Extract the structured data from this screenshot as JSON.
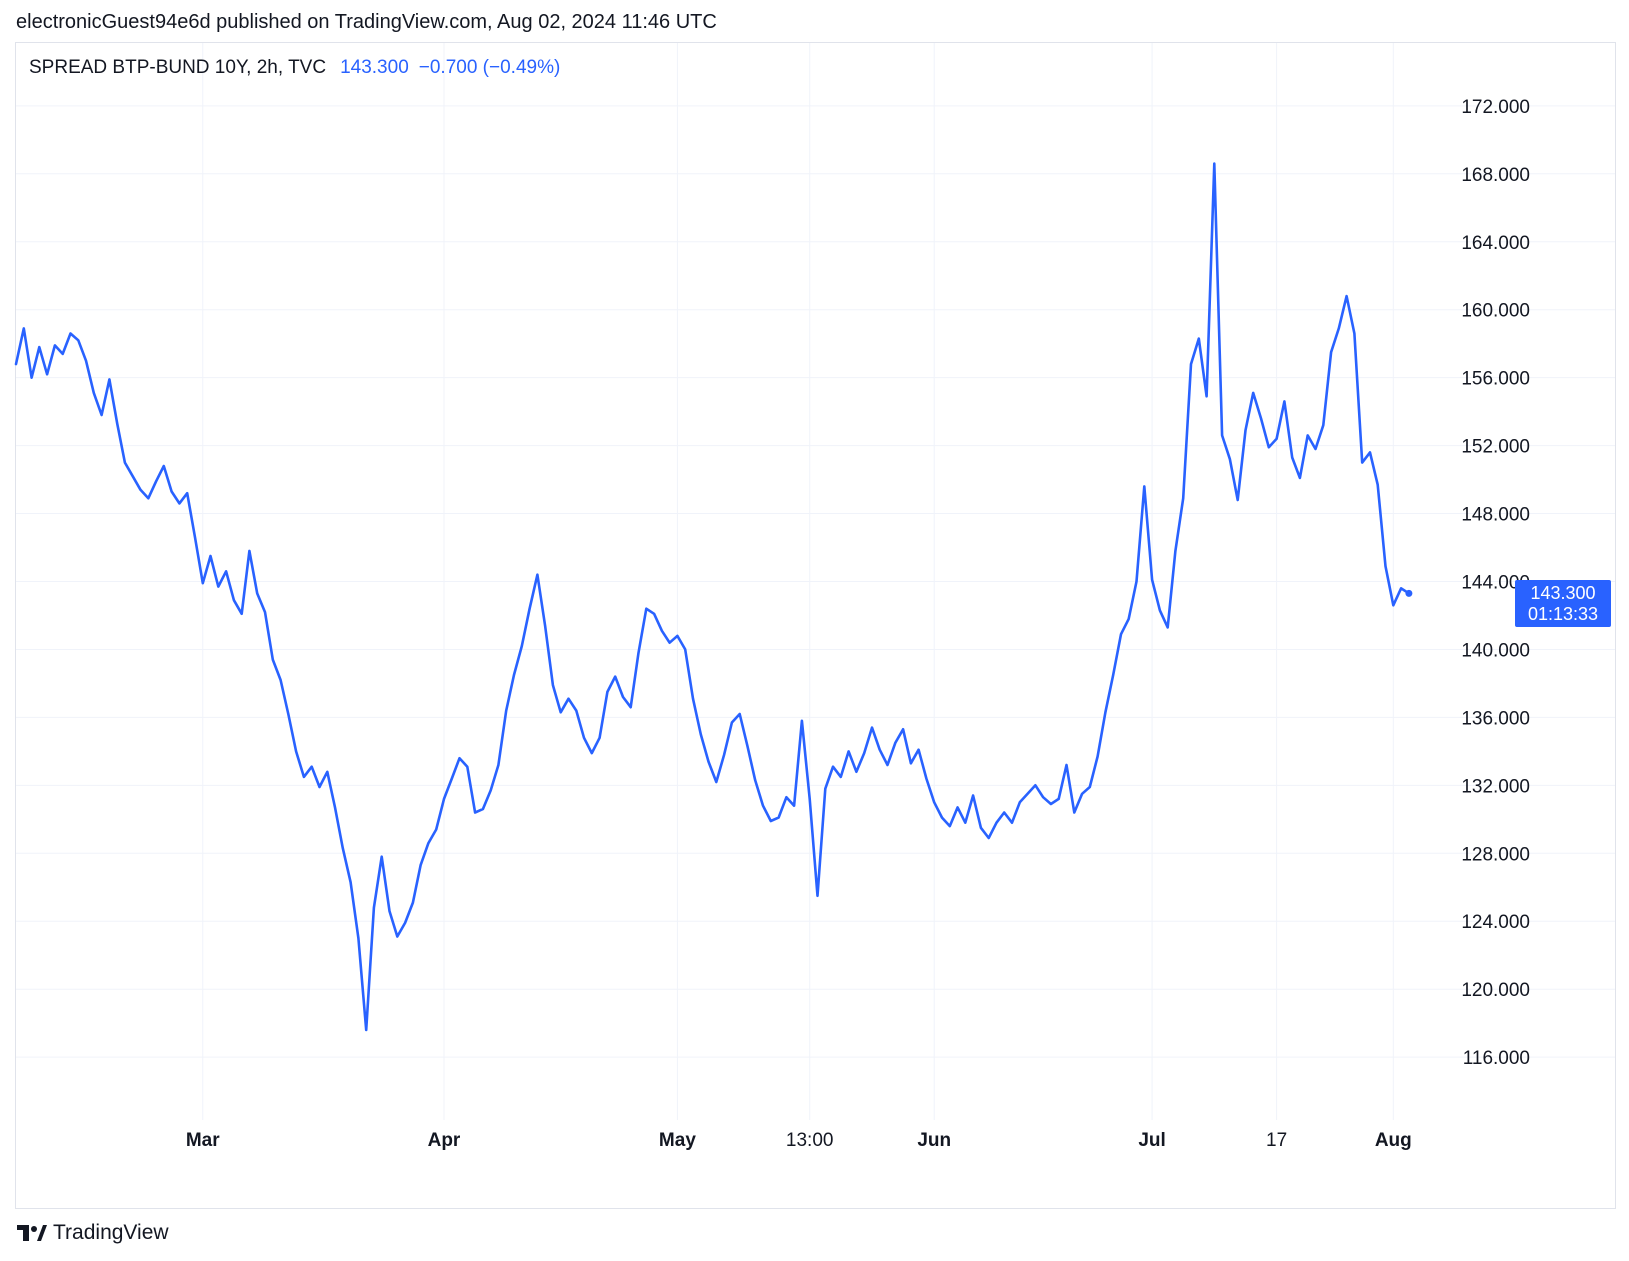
{
  "header": {
    "published_text": "electronicGuest94e6d published on TradingView.com, Aug 02, 2024 11:46 UTC"
  },
  "legend": {
    "symbol": "SPREAD BTP-BUND 10Y, 2h, TVC",
    "last_value": "143.300",
    "change": "−0.700 (−0.49%)"
  },
  "price_tag": {
    "price": "143.300",
    "countdown": "01:13:33"
  },
  "footer": {
    "brand": "TradingView"
  },
  "colors": {
    "line": "#2962ff",
    "grid": "#f0f3fa",
    "text": "#131722",
    "border": "#e0e3eb"
  },
  "chart_data": {
    "type": "line",
    "title": "SPREAD BTP-BUND 10Y, 2h, TVC",
    "xlabel": "",
    "ylabel": "",
    "ylim": [
      112.3,
      175.7
    ],
    "xlim": [
      "2024-02-06",
      "2024-08-07"
    ],
    "y_ticks": [
      "116.000",
      "120.000",
      "124.000",
      "128.000",
      "132.000",
      "136.000",
      "140.000",
      "144.000",
      "148.000",
      "152.000",
      "156.000",
      "160.000",
      "164.000",
      "168.000",
      "172.000"
    ],
    "x_ticks": [
      {
        "date": "2024-03-01",
        "label": "Mar"
      },
      {
        "date": "2024-04-01",
        "label": "Apr"
      },
      {
        "date": "2024-05-01",
        "label": "May"
      },
      {
        "date": "2024-05-18",
        "label": "13:00"
      },
      {
        "date": "2024-06-03",
        "label": "Jun"
      },
      {
        "date": "2024-07-01",
        "label": "Jul"
      },
      {
        "date": "2024-07-17",
        "label": "17"
      },
      {
        "date": "2024-08-01",
        "label": "Aug"
      }
    ],
    "grid": true,
    "y_axis_position": "right",
    "last_value": 143.3,
    "series": [
      {
        "points": [
          [
            "2024-02-06",
            156.8
          ],
          [
            "2024-02-07",
            158.9
          ],
          [
            "2024-02-08",
            156.0
          ],
          [
            "2024-02-09",
            157.8
          ],
          [
            "2024-02-10",
            156.2
          ],
          [
            "2024-02-11",
            157.9
          ],
          [
            "2024-02-12",
            157.4
          ],
          [
            "2024-02-13",
            158.6
          ],
          [
            "2024-02-14",
            158.2
          ],
          [
            "2024-02-15",
            157.0
          ],
          [
            "2024-02-16",
            155.1
          ],
          [
            "2024-02-17",
            153.8
          ],
          [
            "2024-02-18",
            155.9
          ],
          [
            "2024-02-19",
            153.3
          ],
          [
            "2024-02-20",
            151.0
          ],
          [
            "2024-02-21",
            150.2
          ],
          [
            "2024-02-22",
            149.4
          ],
          [
            "2024-02-23",
            148.9
          ],
          [
            "2024-02-24",
            149.9
          ],
          [
            "2024-02-25",
            150.8
          ],
          [
            "2024-02-26",
            149.3
          ],
          [
            "2024-02-27",
            148.6
          ],
          [
            "2024-02-28",
            149.2
          ],
          [
            "2024-02-29",
            146.6
          ],
          [
            "2024-03-01",
            143.9
          ],
          [
            "2024-03-02",
            145.5
          ],
          [
            "2024-03-03",
            143.7
          ],
          [
            "2024-03-04",
            144.6
          ],
          [
            "2024-03-05",
            142.9
          ],
          [
            "2024-03-06",
            142.1
          ],
          [
            "2024-03-07",
            145.8
          ],
          [
            "2024-03-08",
            143.3
          ],
          [
            "2024-03-09",
            142.2
          ],
          [
            "2024-03-10",
            139.4
          ],
          [
            "2024-03-11",
            138.2
          ],
          [
            "2024-03-12",
            136.2
          ],
          [
            "2024-03-13",
            134.0
          ],
          [
            "2024-03-14",
            132.5
          ],
          [
            "2024-03-15",
            133.1
          ],
          [
            "2024-03-16",
            131.9
          ],
          [
            "2024-03-17",
            132.8
          ],
          [
            "2024-03-18",
            130.7
          ],
          [
            "2024-03-19",
            128.3
          ],
          [
            "2024-03-20",
            126.3
          ],
          [
            "2024-03-21",
            123.0
          ],
          [
            "2024-03-22",
            117.6
          ],
          [
            "2024-03-23",
            124.8
          ],
          [
            "2024-03-24",
            127.8
          ],
          [
            "2024-03-25",
            124.6
          ],
          [
            "2024-03-26",
            123.1
          ],
          [
            "2024-03-27",
            123.9
          ],
          [
            "2024-03-28",
            125.1
          ],
          [
            "2024-03-29",
            127.3
          ],
          [
            "2024-03-30",
            128.6
          ],
          [
            "2024-03-31",
            129.4
          ],
          [
            "2024-04-01",
            131.2
          ],
          [
            "2024-04-02",
            132.4
          ],
          [
            "2024-04-03",
            133.6
          ],
          [
            "2024-04-04",
            133.1
          ],
          [
            "2024-04-05",
            130.4
          ],
          [
            "2024-04-06",
            130.6
          ],
          [
            "2024-04-07",
            131.7
          ],
          [
            "2024-04-08",
            133.2
          ],
          [
            "2024-04-09",
            136.4
          ],
          [
            "2024-04-10",
            138.5
          ],
          [
            "2024-04-11",
            140.2
          ],
          [
            "2024-04-12",
            142.4
          ],
          [
            "2024-04-13",
            144.4
          ],
          [
            "2024-04-14",
            141.4
          ],
          [
            "2024-04-15",
            137.9
          ],
          [
            "2024-04-16",
            136.3
          ],
          [
            "2024-04-17",
            137.1
          ],
          [
            "2024-04-18",
            136.4
          ],
          [
            "2024-04-19",
            134.8
          ],
          [
            "2024-04-20",
            133.9
          ],
          [
            "2024-04-21",
            134.8
          ],
          [
            "2024-04-22",
            137.5
          ],
          [
            "2024-04-23",
            138.4
          ],
          [
            "2024-04-24",
            137.2
          ],
          [
            "2024-04-25",
            136.6
          ],
          [
            "2024-04-26",
            139.8
          ],
          [
            "2024-04-27",
            142.4
          ],
          [
            "2024-04-28",
            142.1
          ],
          [
            "2024-04-29",
            141.1
          ],
          [
            "2024-04-30",
            140.4
          ],
          [
            "2024-05-01",
            140.8
          ],
          [
            "2024-05-02",
            140.0
          ],
          [
            "2024-05-03",
            137.1
          ],
          [
            "2024-05-04",
            135.0
          ],
          [
            "2024-05-05",
            133.4
          ],
          [
            "2024-05-06",
            132.2
          ],
          [
            "2024-05-07",
            133.8
          ],
          [
            "2024-05-08",
            135.7
          ],
          [
            "2024-05-09",
            136.2
          ],
          [
            "2024-05-10",
            134.3
          ],
          [
            "2024-05-11",
            132.3
          ],
          [
            "2024-05-12",
            130.8
          ],
          [
            "2024-05-13",
            129.9
          ],
          [
            "2024-05-14",
            130.1
          ],
          [
            "2024-05-15",
            131.3
          ],
          [
            "2024-05-16",
            130.8
          ],
          [
            "2024-05-17",
            135.8
          ],
          [
            "2024-05-18",
            131.2
          ],
          [
            "2024-05-19",
            125.5
          ],
          [
            "2024-05-20",
            131.8
          ],
          [
            "2024-05-21",
            133.1
          ],
          [
            "2024-05-22",
            132.5
          ],
          [
            "2024-05-23",
            134.0
          ],
          [
            "2024-05-24",
            132.8
          ],
          [
            "2024-05-25",
            133.9
          ],
          [
            "2024-05-26",
            135.4
          ],
          [
            "2024-05-27",
            134.1
          ],
          [
            "2024-05-28",
            133.2
          ],
          [
            "2024-05-29",
            134.5
          ],
          [
            "2024-05-30",
            135.3
          ],
          [
            "2024-05-31",
            133.3
          ],
          [
            "2024-06-01",
            134.1
          ],
          [
            "2024-06-02",
            132.4
          ],
          [
            "2024-06-03",
            131.0
          ],
          [
            "2024-06-04",
            130.1
          ],
          [
            "2024-06-05",
            129.6
          ],
          [
            "2024-06-06",
            130.7
          ],
          [
            "2024-06-07",
            129.8
          ],
          [
            "2024-06-08",
            131.4
          ],
          [
            "2024-06-09",
            129.5
          ],
          [
            "2024-06-10",
            128.9
          ],
          [
            "2024-06-11",
            129.8
          ],
          [
            "2024-06-12",
            130.4
          ],
          [
            "2024-06-13",
            129.8
          ],
          [
            "2024-06-14",
            131.0
          ],
          [
            "2024-06-15",
            131.5
          ],
          [
            "2024-06-16",
            132.0
          ],
          [
            "2024-06-17",
            131.3
          ],
          [
            "2024-06-18",
            130.9
          ],
          [
            "2024-06-19",
            131.2
          ],
          [
            "2024-06-20",
            133.2
          ],
          [
            "2024-06-21",
            130.4
          ],
          [
            "2024-06-22",
            131.5
          ],
          [
            "2024-06-23",
            131.9
          ],
          [
            "2024-06-24",
            133.7
          ],
          [
            "2024-06-25",
            136.3
          ],
          [
            "2024-06-26",
            138.5
          ],
          [
            "2024-06-27",
            140.9
          ],
          [
            "2024-06-28",
            141.8
          ],
          [
            "2024-06-29",
            144.0
          ],
          [
            "2024-06-30",
            149.6
          ],
          [
            "2024-07-01",
            144.1
          ],
          [
            "2024-07-02",
            142.3
          ],
          [
            "2024-07-03",
            141.3
          ],
          [
            "2024-07-04",
            145.8
          ],
          [
            "2024-07-05",
            148.9
          ],
          [
            "2024-07-06",
            156.8
          ],
          [
            "2024-07-07",
            158.3
          ],
          [
            "2024-07-08",
            154.9
          ],
          [
            "2024-07-09",
            168.6
          ],
          [
            "2024-07-10",
            152.6
          ],
          [
            "2024-07-11",
            151.2
          ],
          [
            "2024-07-12",
            148.8
          ],
          [
            "2024-07-13",
            152.9
          ],
          [
            "2024-07-14",
            155.1
          ],
          [
            "2024-07-15",
            153.6
          ],
          [
            "2024-07-16",
            151.9
          ],
          [
            "2024-07-17",
            152.4
          ],
          [
            "2024-07-18",
            154.6
          ],
          [
            "2024-07-19",
            151.3
          ],
          [
            "2024-07-20",
            150.1
          ],
          [
            "2024-07-21",
            152.6
          ],
          [
            "2024-07-22",
            151.8
          ],
          [
            "2024-07-23",
            153.2
          ],
          [
            "2024-07-24",
            157.5
          ],
          [
            "2024-07-25",
            158.9
          ],
          [
            "2024-07-26",
            160.8
          ],
          [
            "2024-07-27",
            158.6
          ],
          [
            "2024-07-28",
            151.0
          ],
          [
            "2024-07-29",
            151.6
          ],
          [
            "2024-07-30",
            149.7
          ],
          [
            "2024-07-31",
            144.9
          ],
          [
            "2024-08-01",
            142.6
          ],
          [
            "2024-08-02",
            143.6
          ],
          [
            "2024-08-03",
            143.3
          ]
        ]
      }
    ]
  }
}
